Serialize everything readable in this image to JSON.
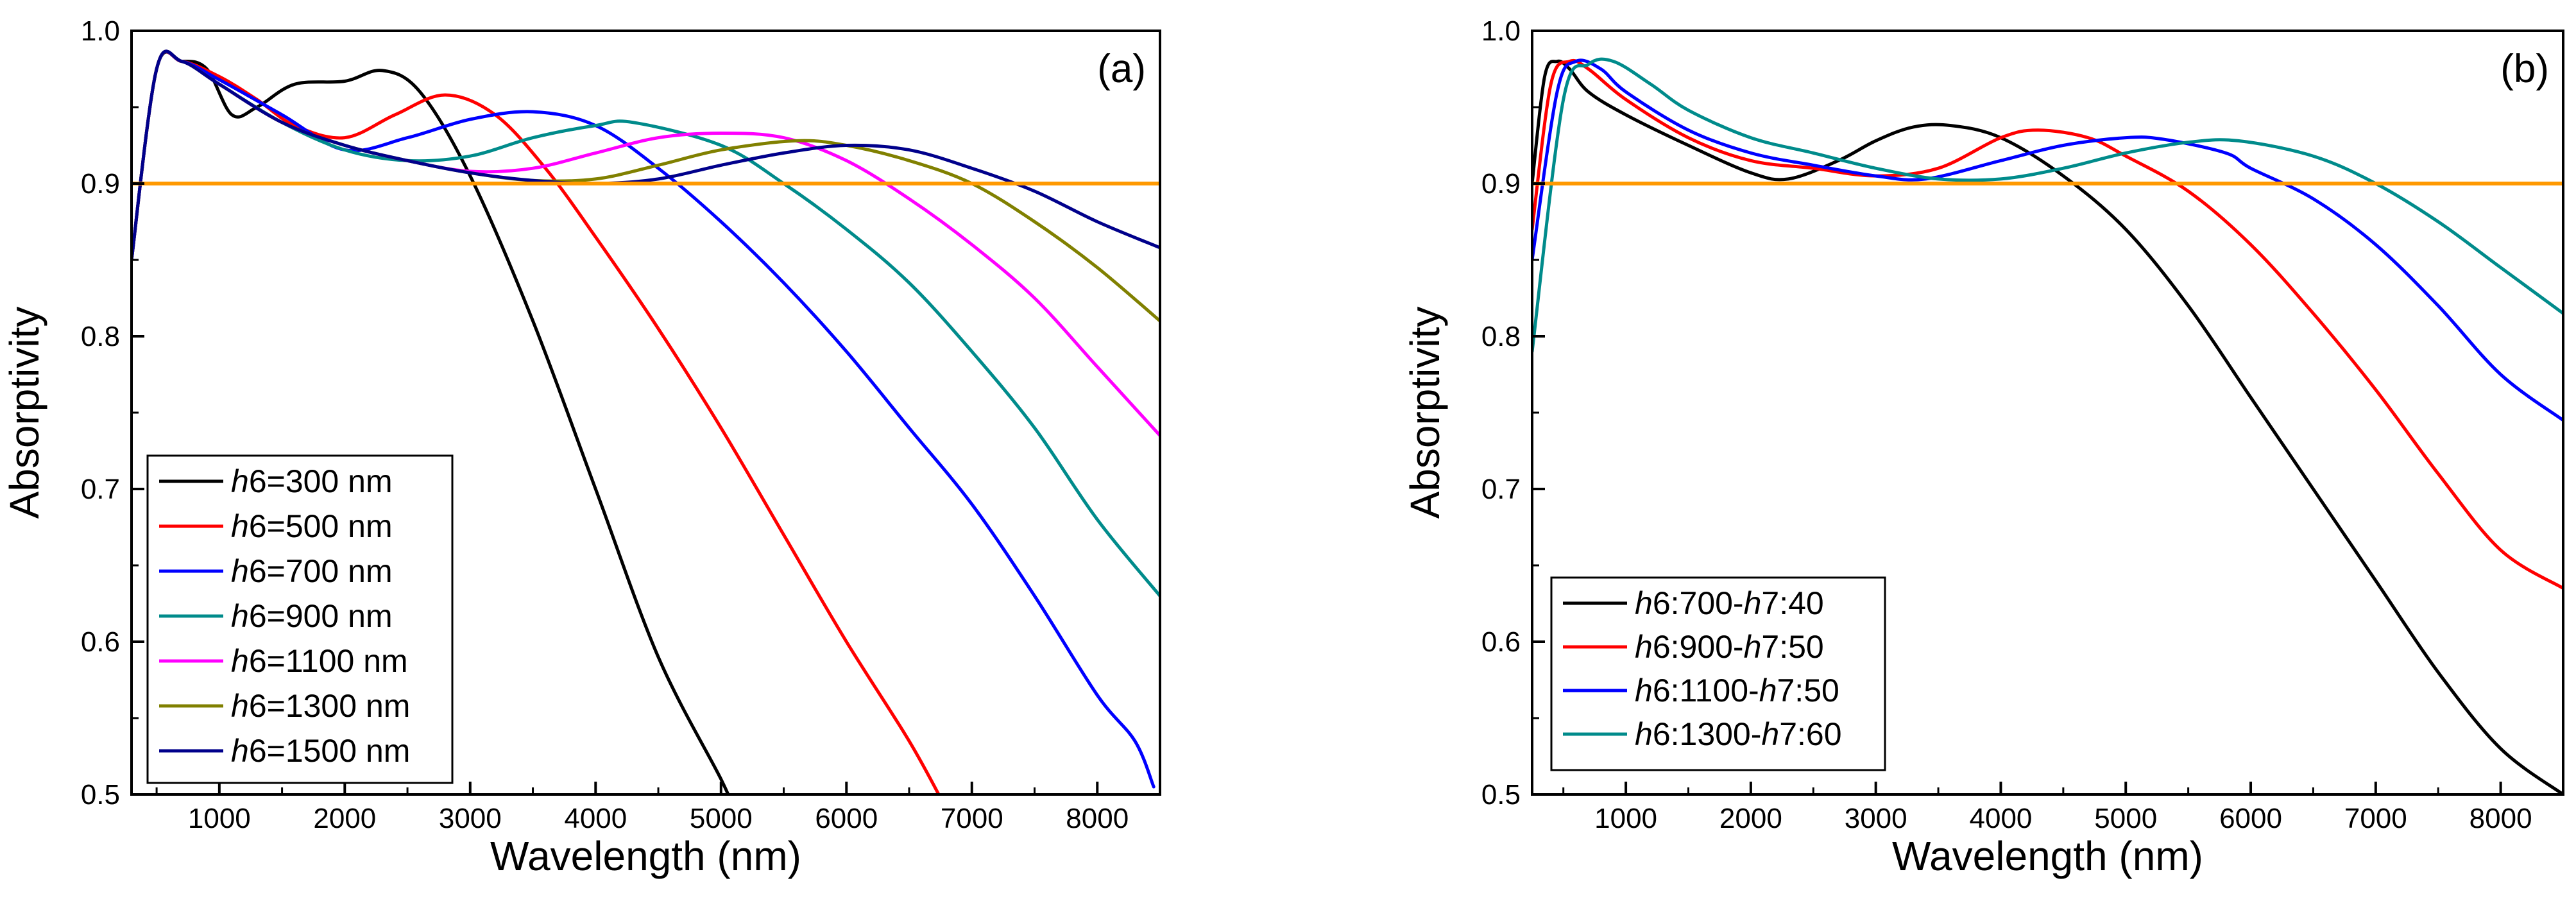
{
  "chart_data": [
    {
      "type": "line",
      "panel_label": "(a)",
      "xlabel": "Wavelength (nm)",
      "ylabel": "Absorptivity",
      "xlim": [
        300,
        8500
      ],
      "ylim": [
        0.5,
        1.0
      ],
      "xticks": [
        1000,
        2000,
        3000,
        4000,
        5000,
        6000,
        7000,
        8000
      ],
      "yticks": [
        0.5,
        0.6,
        0.7,
        0.8,
        0.9,
        1.0
      ],
      "legend_position": "bottom-left",
      "reference_line": {
        "y": 0.9,
        "color": "#FF9900"
      },
      "series": [
        {
          "label_italic": "h",
          "label_rest": "6=300 nm",
          "color": "#000000",
          "x": [
            300,
            500,
            700,
            900,
            1100,
            1300,
            1600,
            2000,
            2300,
            2600,
            3000,
            3500,
            4000,
            4500,
            5000,
            5100
          ],
          "y": [
            0.85,
            0.975,
            0.98,
            0.975,
            0.945,
            0.95,
            0.965,
            0.967,
            0.974,
            0.96,
            0.905,
            0.81,
            0.7,
            0.59,
            0.51,
            0.49
          ]
        },
        {
          "label_italic": "h",
          "label_rest": "6=500 nm",
          "color": "#FF0000",
          "x": [
            300,
            500,
            700,
            1000,
            1300,
            1600,
            2000,
            2400,
            2800,
            3200,
            3600,
            4000,
            4500,
            5000,
            5500,
            6000,
            6500,
            6800
          ],
          "y": [
            0.85,
            0.975,
            0.98,
            0.97,
            0.955,
            0.938,
            0.93,
            0.945,
            0.958,
            0.945,
            0.91,
            0.865,
            0.805,
            0.74,
            0.67,
            0.6,
            0.535,
            0.49
          ]
        },
        {
          "label_italic": "h",
          "label_rest": "6=700 nm",
          "color": "#0000FF",
          "x": [
            300,
            500,
            700,
            1000,
            1500,
            2000,
            2500,
            3000,
            3500,
            4000,
            4500,
            5000,
            5500,
            6000,
            6500,
            7000,
            7500,
            8000,
            8300,
            8450
          ],
          "y": [
            0.85,
            0.975,
            0.98,
            0.968,
            0.945,
            0.922,
            0.93,
            0.942,
            0.947,
            0.938,
            0.91,
            0.875,
            0.835,
            0.79,
            0.74,
            0.69,
            0.63,
            0.565,
            0.535,
            0.505
          ]
        },
        {
          "label_italic": "h",
          "label_rest": "6=900 nm",
          "color": "#008B8B",
          "x": [
            300,
            500,
            700,
            1000,
            1500,
            2000,
            2500,
            3000,
            3500,
            4000,
            4300,
            5000,
            5500,
            6000,
            6500,
            7000,
            7500,
            8000,
            8500
          ],
          "y": [
            0.85,
            0.975,
            0.98,
            0.965,
            0.94,
            0.922,
            0.915,
            0.918,
            0.93,
            0.938,
            0.94,
            0.925,
            0.9,
            0.87,
            0.835,
            0.79,
            0.74,
            0.68,
            0.63
          ]
        },
        {
          "label_italic": "h",
          "label_rest": "6=1100 nm",
          "color": "#FF00FF",
          "x": [
            300,
            500,
            700,
            1000,
            1500,
            2000,
            2500,
            3000,
            3500,
            4000,
            4500,
            5000,
            5500,
            6000,
            6500,
            7000,
            7500,
            8000,
            8500
          ],
          "y": [
            0.85,
            0.975,
            0.98,
            0.965,
            0.94,
            0.925,
            0.915,
            0.908,
            0.91,
            0.92,
            0.93,
            0.933,
            0.93,
            0.915,
            0.89,
            0.86,
            0.825,
            0.78,
            0.735
          ]
        },
        {
          "label_italic": "h",
          "label_rest": "6=1300 nm",
          "color": "#808000",
          "x": [
            300,
            500,
            700,
            1000,
            1500,
            2000,
            2500,
            3000,
            3500,
            4000,
            4500,
            5000,
            5600,
            6000,
            6500,
            7000,
            7500,
            8000,
            8500
          ],
          "y": [
            0.85,
            0.975,
            0.98,
            0.965,
            0.94,
            0.925,
            0.915,
            0.907,
            0.902,
            0.903,
            0.912,
            0.922,
            0.928,
            0.925,
            0.915,
            0.9,
            0.875,
            0.845,
            0.81
          ]
        },
        {
          "label_italic": "h",
          "label_rest": "6=1500 nm",
          "color": "#00008B",
          "x": [
            300,
            500,
            700,
            1000,
            1500,
            2000,
            2500,
            3000,
            3500,
            4000,
            4500,
            5000,
            5500,
            6000,
            6500,
            7000,
            7500,
            8000,
            8500
          ],
          "y": [
            0.85,
            0.975,
            0.98,
            0.965,
            0.94,
            0.925,
            0.915,
            0.907,
            0.902,
            0.9,
            0.903,
            0.912,
            0.92,
            0.925,
            0.922,
            0.91,
            0.895,
            0.875,
            0.858
          ]
        }
      ]
    },
    {
      "type": "line",
      "panel_label": "(b)",
      "xlabel": "Wavelength (nm)",
      "ylabel": "Absorptivity",
      "xlim": [
        250,
        8500
      ],
      "ylim": [
        0.5,
        1.0
      ],
      "xticks": [
        1000,
        2000,
        3000,
        4000,
        5000,
        6000,
        7000,
        8000
      ],
      "yticks": [
        0.5,
        0.6,
        0.7,
        0.8,
        0.9,
        1.0
      ],
      "legend_position": "bottom-left",
      "reference_line": {
        "y": 0.9,
        "color": "#FF9900"
      },
      "series": [
        {
          "label_parts": [
            {
              "t": "h",
              "i": true
            },
            {
              "t": "6:700-",
              "i": false
            },
            {
              "t": "h",
              "i": true
            },
            {
              "t": "7:40",
              "i": false
            }
          ],
          "color": "#000000",
          "x": [
            250,
            350,
            450,
            550,
            700,
            1000,
            1500,
            2000,
            2300,
            2700,
            3000,
            3300,
            3600,
            4000,
            4500,
            5000,
            5500,
            6000,
            6500,
            7000,
            7500,
            8000,
            8500
          ],
          "y": [
            0.9,
            0.97,
            0.98,
            0.975,
            0.96,
            0.945,
            0.925,
            0.907,
            0.903,
            0.915,
            0.928,
            0.937,
            0.938,
            0.93,
            0.905,
            0.87,
            0.82,
            0.76,
            0.7,
            0.64,
            0.58,
            0.53,
            0.5
          ]
        },
        {
          "label_parts": [
            {
              "t": "h",
              "i": true
            },
            {
              "t": "6:900-",
              "i": false
            },
            {
              "t": "h",
              "i": true
            },
            {
              "t": "7:50",
              "i": false
            }
          ],
          "color": "#FF0000",
          "x": [
            250,
            400,
            550,
            700,
            1000,
            1500,
            2000,
            2500,
            3000,
            3500,
            4000,
            4300,
            4700,
            5000,
            5500,
            6000,
            6500,
            7000,
            7500,
            8000,
            8500
          ],
          "y": [
            0.87,
            0.965,
            0.98,
            0.975,
            0.955,
            0.93,
            0.915,
            0.91,
            0.905,
            0.91,
            0.93,
            0.935,
            0.93,
            0.918,
            0.895,
            0.86,
            0.815,
            0.765,
            0.71,
            0.66,
            0.635
          ]
        },
        {
          "label_parts": [
            {
              "t": "h",
              "i": true
            },
            {
              "t": "6:1100-",
              "i": false
            },
            {
              "t": "h",
              "i": true
            },
            {
              "t": "7:50",
              "i": false
            }
          ],
          "color": "#0000FF",
          "x": [
            250,
            450,
            600,
            800,
            1000,
            1500,
            2000,
            2500,
            3000,
            3400,
            4000,
            4500,
            5000,
            5300,
            5800,
            6000,
            6500,
            7000,
            7500,
            8000,
            8500
          ],
          "y": [
            0.85,
            0.96,
            0.98,
            0.975,
            0.96,
            0.935,
            0.92,
            0.912,
            0.905,
            0.903,
            0.915,
            0.925,
            0.93,
            0.929,
            0.92,
            0.91,
            0.89,
            0.86,
            0.82,
            0.775,
            0.745
          ]
        },
        {
          "label_parts": [
            {
              "t": "h",
              "i": true
            },
            {
              "t": "6:1300-",
              "i": false
            },
            {
              "t": "h",
              "i": true
            },
            {
              "t": "7:60",
              "i": false
            }
          ],
          "color": "#008B8B",
          "x": [
            250,
            500,
            700,
            900,
            1200,
            1500,
            2000,
            2500,
            3000,
            3500,
            4000,
            4500,
            5000,
            5500,
            5900,
            6500,
            7000,
            7500,
            8000,
            8500
          ],
          "y": [
            0.79,
            0.955,
            0.978,
            0.98,
            0.965,
            0.948,
            0.93,
            0.92,
            0.91,
            0.903,
            0.903,
            0.91,
            0.92,
            0.927,
            0.928,
            0.918,
            0.9,
            0.875,
            0.845,
            0.815
          ]
        }
      ]
    }
  ]
}
